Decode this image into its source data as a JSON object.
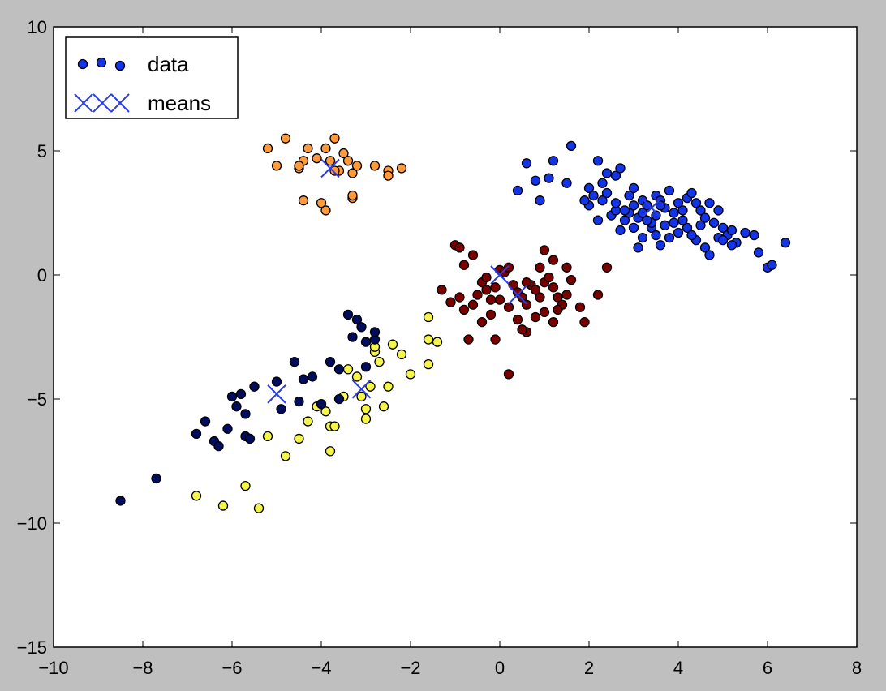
{
  "chart_data": {
    "type": "scatter",
    "title": "",
    "xlabel": "",
    "ylabel": "",
    "xlim": [
      -10,
      8
    ],
    "ylim": [
      -15,
      10
    ],
    "xticks": [
      -10,
      -8,
      -6,
      -4,
      -2,
      0,
      2,
      4,
      6,
      8
    ],
    "yticks": [
      10,
      5,
      0,
      -5,
      -10,
      -15
    ],
    "tick_labels_x": [
      "−10",
      "−8",
      "−6",
      "−4",
      "−2",
      "0",
      "2",
      "4",
      "6",
      "8"
    ],
    "tick_labels_y": [
      "10",
      "5",
      "0",
      "−5",
      "−10",
      "−15"
    ],
    "grid": false,
    "legend_position": "top-left",
    "legend": [
      {
        "label": "data",
        "marker": "circle"
      },
      {
        "label": "means",
        "marker": "x"
      }
    ],
    "clusters": [
      {
        "color": "#ff9a3c",
        "points": [
          [
            -5.2,
            5.1
          ],
          [
            -4.8,
            5.5
          ],
          [
            -4.5,
            4.3
          ],
          [
            -4.4,
            4.6
          ],
          [
            -4.3,
            5.1
          ],
          [
            -4.1,
            4.7
          ],
          [
            -3.9,
            5.1
          ],
          [
            -3.8,
            4.6
          ],
          [
            -3.7,
            5.5
          ],
          [
            -3.6,
            4.2
          ],
          [
            -3.5,
            4.9
          ],
          [
            -3.4,
            4.6
          ],
          [
            -3.3,
            4.1
          ],
          [
            -3.2,
            4.4
          ],
          [
            -3.3,
            3.1
          ],
          [
            -2.8,
            4.4
          ],
          [
            -2.5,
            4.2
          ],
          [
            -2.5,
            4.0
          ],
          [
            -2.2,
            4.3
          ],
          [
            -4.4,
            3.0
          ],
          [
            -4.0,
            2.9
          ],
          [
            -3.9,
            2.6
          ],
          [
            -3.3,
            3.2
          ],
          [
            -5.0,
            4.4
          ],
          [
            -4.5,
            4.4
          ],
          [
            -3.7,
            4.2
          ]
        ]
      },
      {
        "color": "#1434e8",
        "points": [
          [
            1.6,
            5.2
          ],
          [
            0.9,
            3.0
          ],
          [
            0.6,
            4.5
          ],
          [
            0.8,
            3.8
          ],
          [
            1.1,
            3.9
          ],
          [
            1.2,
            4.6
          ],
          [
            0.4,
            3.4
          ],
          [
            1.5,
            3.7
          ],
          [
            2.0,
            3.5
          ],
          [
            2.2,
            4.6
          ],
          [
            2.4,
            4.1
          ],
          [
            2.6,
            4.0
          ],
          [
            2.7,
            4.3
          ],
          [
            2.9,
            3.2
          ],
          [
            3.0,
            3.5
          ],
          [
            3.2,
            3.0
          ],
          [
            3.3,
            2.8
          ],
          [
            3.5,
            3.2
          ],
          [
            3.6,
            3.0
          ],
          [
            3.7,
            2.7
          ],
          [
            3.8,
            3.4
          ],
          [
            3.9,
            2.5
          ],
          [
            4.0,
            2.9
          ],
          [
            4.1,
            2.6
          ],
          [
            4.2,
            3.1
          ],
          [
            4.3,
            3.3
          ],
          [
            4.4,
            2.9
          ],
          [
            4.5,
            2.6
          ],
          [
            4.6,
            2.3
          ],
          [
            4.7,
            2.9
          ],
          [
            4.8,
            2.1
          ],
          [
            4.9,
            2.6
          ],
          [
            5.0,
            1.9
          ],
          [
            5.1,
            1.6
          ],
          [
            5.2,
            1.8
          ],
          [
            5.3,
            1.3
          ],
          [
            5.5,
            1.7
          ],
          [
            5.7,
            1.6
          ],
          [
            5.8,
            0.9
          ],
          [
            6.0,
            0.3
          ],
          [
            6.1,
            0.4
          ],
          [
            6.4,
            1.3
          ],
          [
            2.0,
            2.8
          ],
          [
            2.2,
            2.2
          ],
          [
            2.3,
            3.0
          ],
          [
            2.5,
            2.4
          ],
          [
            2.6,
            2.6
          ],
          [
            2.7,
            1.8
          ],
          [
            2.8,
            2.2
          ],
          [
            3.0,
            1.9
          ],
          [
            3.1,
            2.3
          ],
          [
            3.2,
            1.5
          ],
          [
            3.4,
            1.9
          ],
          [
            3.5,
            1.6
          ],
          [
            3.6,
            1.2
          ],
          [
            3.8,
            1.5
          ],
          [
            4.0,
            1.7
          ],
          [
            4.2,
            1.9
          ],
          [
            4.4,
            1.4
          ],
          [
            4.6,
            1.1
          ],
          [
            4.7,
            0.8
          ],
          [
            4.9,
            1.5
          ],
          [
            5.0,
            1.4
          ],
          [
            3.1,
            1.1
          ],
          [
            3.4,
            2.1
          ],
          [
            2.9,
            2.5
          ],
          [
            3.3,
            2.2
          ],
          [
            3.7,
            2.0
          ],
          [
            4.1,
            2.2
          ],
          [
            4.3,
            1.6
          ],
          [
            2.4,
            3.3
          ],
          [
            2.6,
            2.9
          ],
          [
            2.8,
            2.6
          ],
          [
            3.0,
            2.8
          ],
          [
            3.2,
            2.5
          ],
          [
            3.5,
            2.4
          ],
          [
            3.9,
            2.1
          ],
          [
            4.5,
            2.0
          ],
          [
            5.2,
            1.2
          ],
          [
            3.6,
            2.8
          ],
          [
            2.1,
            3.2
          ],
          [
            2.3,
            3.7
          ],
          [
            1.9,
            3.0
          ]
        ]
      },
      {
        "color": "#7a0000",
        "points": [
          [
            -1.0,
            1.2
          ],
          [
            -0.9,
            1.1
          ],
          [
            -0.6,
            0.8
          ],
          [
            -0.8,
            0.4
          ],
          [
            -1.3,
            -0.6
          ],
          [
            -1.1,
            -1.1
          ],
          [
            -0.9,
            -0.9
          ],
          [
            -0.8,
            -1.4
          ],
          [
            -0.6,
            -1.2
          ],
          [
            -0.5,
            -0.8
          ],
          [
            -0.4,
            -0.3
          ],
          [
            -0.3,
            -0.6
          ],
          [
            -0.2,
            -1.0
          ],
          [
            -0.1,
            -0.5
          ],
          [
            0.0,
            0.2
          ],
          [
            0.1,
            0.1
          ],
          [
            0.2,
            0.3
          ],
          [
            0.3,
            -0.4
          ],
          [
            0.4,
            -0.7
          ],
          [
            0.5,
            -0.9
          ],
          [
            0.6,
            -1.2
          ],
          [
            0.7,
            -0.4
          ],
          [
            0.8,
            -0.6
          ],
          [
            0.9,
            -0.9
          ],
          [
            1.0,
            -0.3
          ],
          [
            1.1,
            -0.1
          ],
          [
            1.2,
            -0.5
          ],
          [
            1.3,
            -0.9
          ],
          [
            1.4,
            -1.2
          ],
          [
            1.5,
            0.3
          ],
          [
            1.6,
            -0.2
          ],
          [
            1.8,
            -1.3
          ],
          [
            1.9,
            -1.9
          ],
          [
            2.2,
            -0.8
          ],
          [
            2.4,
            0.3
          ],
          [
            1.0,
            1.0
          ],
          [
            1.2,
            0.6
          ],
          [
            0.9,
            0.3
          ],
          [
            0.4,
            -1.8
          ],
          [
            0.6,
            -2.3
          ],
          [
            0.8,
            -1.7
          ],
          [
            1.0,
            -1.5
          ],
          [
            1.2,
            -1.9
          ],
          [
            0.5,
            -2.2
          ],
          [
            0.2,
            -1.3
          ],
          [
            -0.1,
            -2.6
          ],
          [
            -0.2,
            -1.6
          ],
          [
            -0.4,
            -1.9
          ],
          [
            -0.7,
            -2.6
          ],
          [
            0.2,
            -4.0
          ],
          [
            0.0,
            -1.0
          ],
          [
            -0.3,
            -0.1
          ],
          [
            0.6,
            -0.3
          ],
          [
            1.3,
            -1.4
          ],
          [
            1.5,
            -0.8
          ]
        ]
      },
      {
        "color": "#f5f54a",
        "points": [
          [
            -6.8,
            -8.9
          ],
          [
            -6.2,
            -9.3
          ],
          [
            -5.7,
            -8.5
          ],
          [
            -5.4,
            -9.4
          ],
          [
            -5.2,
            -6.5
          ],
          [
            -4.8,
            -7.3
          ],
          [
            -4.5,
            -6.6
          ],
          [
            -4.3,
            -5.9
          ],
          [
            -4.1,
            -5.3
          ],
          [
            -3.9,
            -5.5
          ],
          [
            -3.8,
            -6.1
          ],
          [
            -3.7,
            -6.1
          ],
          [
            -3.8,
            -7.1
          ],
          [
            -3.5,
            -4.9
          ],
          [
            -3.4,
            -3.8
          ],
          [
            -3.2,
            -4.1
          ],
          [
            -3.0,
            -5.4
          ],
          [
            -3.0,
            -5.8
          ],
          [
            -2.9,
            -4.5
          ],
          [
            -2.8,
            -3.1
          ],
          [
            -2.7,
            -3.5
          ],
          [
            -2.5,
            -4.5
          ],
          [
            -2.6,
            -5.3
          ],
          [
            -2.2,
            -3.2
          ],
          [
            -2.0,
            -4.0
          ],
          [
            -1.6,
            -2.6
          ],
          [
            -1.4,
            -2.7
          ],
          [
            -1.6,
            -1.7
          ],
          [
            -1.6,
            -3.6
          ],
          [
            -2.4,
            -2.8
          ],
          [
            -3.1,
            -4.9
          ],
          [
            -2.8,
            -2.9
          ]
        ]
      },
      {
        "color": "#000c5c",
        "points": [
          [
            -8.5,
            -9.1
          ],
          [
            -7.7,
            -8.2
          ],
          [
            -6.8,
            -6.4
          ],
          [
            -6.6,
            -5.9
          ],
          [
            -6.4,
            -6.7
          ],
          [
            -6.3,
            -6.9
          ],
          [
            -6.1,
            -6.2
          ],
          [
            -6.0,
            -4.9
          ],
          [
            -5.9,
            -5.3
          ],
          [
            -5.7,
            -6.5
          ],
          [
            -5.6,
            -6.6
          ],
          [
            -5.5,
            -4.5
          ],
          [
            -5.8,
            -4.8
          ],
          [
            -4.9,
            -5.4
          ],
          [
            -4.6,
            -3.5
          ],
          [
            -4.4,
            -4.2
          ],
          [
            -4.2,
            -4.1
          ],
          [
            -4.0,
            -5.2
          ],
          [
            -3.8,
            -3.5
          ],
          [
            -3.6,
            -3.8
          ],
          [
            -3.4,
            -1.6
          ],
          [
            -3.2,
            -1.8
          ],
          [
            -3.1,
            -2.1
          ],
          [
            -3.0,
            -2.7
          ],
          [
            -2.8,
            -2.6
          ],
          [
            -2.8,
            -2.3
          ],
          [
            -3.3,
            -2.5
          ],
          [
            -3.6,
            -5.0
          ],
          [
            -4.5,
            -5.1
          ],
          [
            -3.0,
            -3.7
          ],
          [
            -5.7,
            -5.6
          ],
          [
            -5.0,
            -4.3
          ]
        ]
      }
    ],
    "means": {
      "color": "#2b3ce8",
      "points": [
        [
          -3.8,
          4.3
        ],
        [
          3.4,
          2.7
        ],
        [
          0.0,
          0.0
        ],
        [
          0.4,
          -0.8
        ],
        [
          -3.1,
          -4.6
        ],
        [
          -5.0,
          -4.8
        ]
      ]
    }
  }
}
